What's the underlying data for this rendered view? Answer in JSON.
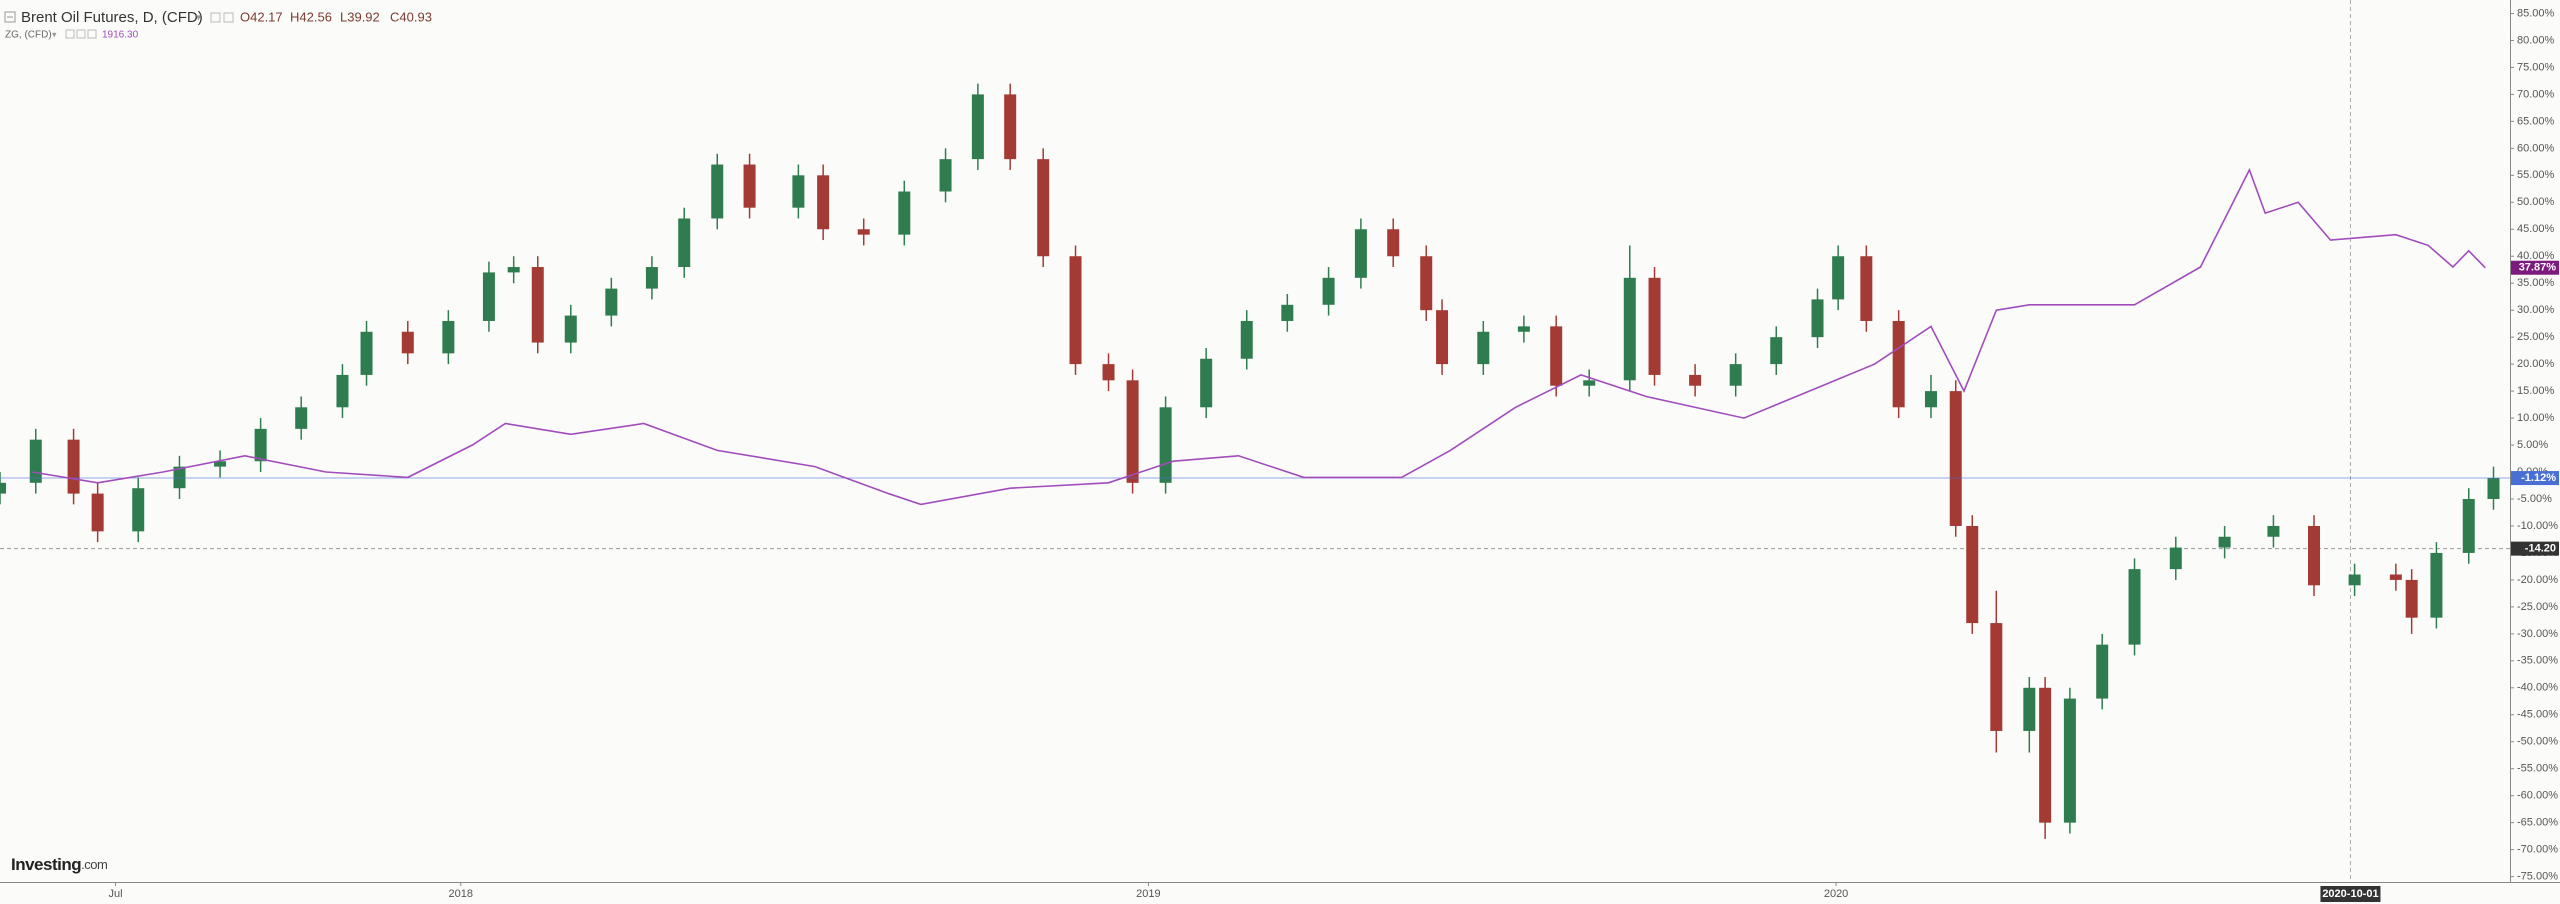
{
  "chart_data": {
    "type": "candlestick",
    "header": {
      "ohlc": [
        "O42.17",
        "H42.56",
        "L39.92",
        "C40.93"
      ],
      "zg_value": "1916.30"
    },
    "logo": "Investing",
    "logo_domain": ".com",
    "xlim": [
      2017.33,
      2020.98
    ],
    "xticks": [
      {
        "value": 2017.498,
        "label": "Jul"
      },
      2018,
      2019,
      2020
    ],
    "ylim": [
      -76,
      87.5
    ],
    "yticks": [
      {
        "value": 85,
        "label": "85.00%"
      },
      {
        "value": 80,
        "label": "80.00%"
      },
      {
        "value": 75,
        "label": "75.00%"
      },
      {
        "value": 70,
        "label": "70.00%"
      },
      {
        "value": 65,
        "label": "65.00%"
      },
      {
        "value": 60,
        "label": "60.00%"
      },
      {
        "value": 55,
        "label": "55.00%"
      },
      {
        "value": 50,
        "label": "50.00%"
      },
      {
        "value": 45,
        "label": "45.00%"
      },
      {
        "value": 40,
        "label": "40.00%"
      },
      {
        "value": 35,
        "label": "35.00%"
      },
      {
        "value": 30,
        "label": "30.00%"
      },
      {
        "value": 25,
        "label": "25.00%"
      },
      {
        "value": 20,
        "label": "20.00%"
      },
      {
        "value": 15,
        "label": "15.00%"
      },
      {
        "value": 10,
        "label": "10.00%"
      },
      {
        "value": 5,
        "label": "5.00%"
      },
      {
        "value": 0,
        "label": "0.00%"
      },
      {
        "value": -5,
        "label": "-5.00%"
      },
      {
        "value": -10,
        "label": "-10.00%"
      },
      {
        "value": -15,
        "label": "-15.00%"
      },
      {
        "value": -20,
        "label": "-20.00%"
      },
      {
        "value": -25,
        "label": "-25.00%"
      },
      {
        "value": -30,
        "label": "-30.00%"
      },
      {
        "value": -35,
        "label": "-35.00%"
      },
      {
        "value": -40,
        "label": "-40.00%"
      },
      {
        "value": -45,
        "label": "-45.00%"
      },
      {
        "value": -50,
        "label": "-50.00%"
      },
      {
        "value": -55,
        "label": "-55.00%"
      },
      {
        "value": -60,
        "label": "-60.00%"
      },
      {
        "value": -65,
        "label": "-65.00%"
      },
      {
        "value": -70,
        "label": "-70.00%"
      },
      {
        "value": -75,
        "label": "-75.00%"
      }
    ],
    "grid": false,
    "series": [
      {
        "name": "Brent Oil Futures, D, (CFD)",
        "type": "candlestick",
        "color_up": "#2f7d4f",
        "color_down": "#a33a33",
        "x": [
          2017.33,
          2017.382,
          2017.437,
          2017.472,
          2017.531,
          2017.591,
          2017.65,
          2017.709,
          2017.768,
          2017.828,
          2017.863,
          2017.923,
          2017.982,
          2018.041,
          2018.077,
          2018.112,
          2018.16,
          2018.219,
          2018.278,
          2018.325,
          2018.373,
          2018.42,
          2018.491,
          2018.527,
          2018.586,
          2018.645,
          2018.705,
          2018.752,
          2018.799,
          2018.847,
          2018.894,
          2018.942,
          2018.977,
          2019.025,
          2019.084,
          2019.143,
          2019.202,
          2019.262,
          2019.309,
          2019.356,
          2019.404,
          2019.427,
          2019.487,
          2019.546,
          2019.593,
          2019.641,
          2019.7,
          2019.736,
          2019.795,
          2019.854,
          2019.913,
          2019.973,
          2020.003,
          2020.044,
          2020.091,
          2020.138,
          2020.174,
          2020.198,
          2020.233,
          2020.281,
          2020.304,
          2020.34,
          2020.387,
          2020.434,
          2020.494,
          2020.565,
          2020.636,
          2020.695,
          2020.754,
          2020.814,
          2020.837,
          2020.873,
          2020.92,
          2020.956
        ],
        "open": [
          -4,
          -2,
          6,
          -4,
          -11,
          -3,
          1,
          2,
          8,
          12,
          18,
          26,
          22,
          28,
          37,
          38,
          24,
          29,
          34,
          38,
          47,
          57,
          49,
          55,
          45,
          44,
          52,
          58,
          70,
          58,
          40,
          20,
          17,
          -2,
          12,
          21,
          28,
          31,
          36,
          45,
          40,
          30,
          20,
          26,
          27,
          16,
          17,
          36,
          18,
          16,
          20,
          25,
          32,
          40,
          28,
          12,
          15,
          -10,
          -28,
          -48,
          -40,
          -65,
          -42,
          -32,
          -18,
          -14,
          -12,
          -10,
          -21,
          -19,
          -20,
          -27,
          -15,
          -5
        ],
        "high": [
          0,
          8,
          8,
          -2,
          -1,
          3,
          4,
          10,
          14,
          20,
          28,
          28,
          30,
          39,
          40,
          40,
          31,
          36,
          40,
          49,
          59,
          59,
          57,
          57,
          47,
          54,
          60,
          72,
          72,
          60,
          42,
          22,
          19,
          14,
          23,
          30,
          33,
          38,
          47,
          47,
          42,
          32,
          28,
          29,
          29,
          19,
          42,
          38,
          20,
          22,
          27,
          34,
          42,
          42,
          30,
          18,
          17,
          -8,
          -22,
          -38,
          -38,
          -40,
          -30,
          -16,
          -12,
          -10,
          -8,
          -8,
          -17,
          -17,
          -18,
          -13,
          -3,
          1
        ],
        "low": [
          -6,
          -4,
          -6,
          -13,
          -13,
          -5,
          -1,
          0,
          6,
          10,
          16,
          20,
          20,
          26,
          35,
          22,
          22,
          27,
          32,
          36,
          45,
          47,
          47,
          43,
          42,
          42,
          50,
          56,
          56,
          38,
          18,
          15,
          -4,
          -4,
          10,
          19,
          26,
          29,
          34,
          38,
          28,
          18,
          18,
          24,
          14,
          14,
          15,
          16,
          14,
          14,
          18,
          23,
          30,
          26,
          10,
          10,
          -12,
          -30,
          -52,
          -52,
          -68,
          -67,
          -44,
          -34,
          -20,
          -16,
          -14,
          -23,
          -23,
          -22,
          -30,
          -29,
          -17,
          -7
        ],
        "close": [
          -2,
          6,
          -4,
          -11,
          -3,
          1,
          2,
          8,
          12,
          18,
          26,
          22,
          28,
          37,
          38,
          24,
          29,
          34,
          38,
          47,
          57,
          49,
          55,
          45,
          44,
          52,
          58,
          70,
          58,
          40,
          20,
          17,
          -2,
          12,
          21,
          28,
          31,
          36,
          45,
          40,
          30,
          20,
          26,
          27,
          16,
          17,
          36,
          18,
          16,
          20,
          25,
          32,
          40,
          28,
          12,
          15,
          -10,
          -28,
          -48,
          -40,
          -65,
          -42,
          -32,
          -18,
          -14,
          -12,
          -10,
          -21,
          -19,
          -20,
          -27,
          -15,
          -5,
          -1.12
        ],
        "last_label": "-1.12%",
        "last_color": "#4a6fd4"
      },
      {
        "name": "ZG, (CFD)",
        "type": "line",
        "color": "#a24bbd",
        "x": [
          2017.377,
          2017.472,
          2017.567,
          2017.686,
          2017.804,
          2017.923,
          2018.017,
          2018.065,
          2018.16,
          2018.266,
          2018.373,
          2018.515,
          2018.622,
          2018.669,
          2018.799,
          2018.942,
          2019.036,
          2019.131,
          2019.226,
          2019.368,
          2019.439,
          2019.534,
          2019.629,
          2019.724,
          2019.866,
          2019.961,
          2020.056,
          2020.138,
          2020.186,
          2020.233,
          2020.281,
          2020.434,
          2020.53,
          2020.601,
          2020.624,
          2020.672,
          2020.719,
          2020.814,
          2020.861,
          2020.897,
          2020.92,
          2020.944
        ],
        "values": [
          0,
          -2,
          0,
          3,
          0,
          -1,
          5,
          9,
          7,
          9,
          4,
          1,
          -4,
          -6,
          -3,
          -2,
          2,
          3,
          -1,
          -1,
          4,
          12,
          18,
          14,
          10,
          15,
          20,
          27,
          15,
          30,
          31,
          31,
          38,
          56,
          48,
          50,
          43,
          44,
          42,
          38,
          41,
          37.87
        ],
        "last_label": "37.87%",
        "last_color": "#7d1a7d"
      }
    ],
    "crosshair": {
      "y": {
        "value": -14.2,
        "label": "-14.20"
      },
      "x": {
        "value": 2020.748,
        "label": "2020-10-01"
      }
    }
  }
}
